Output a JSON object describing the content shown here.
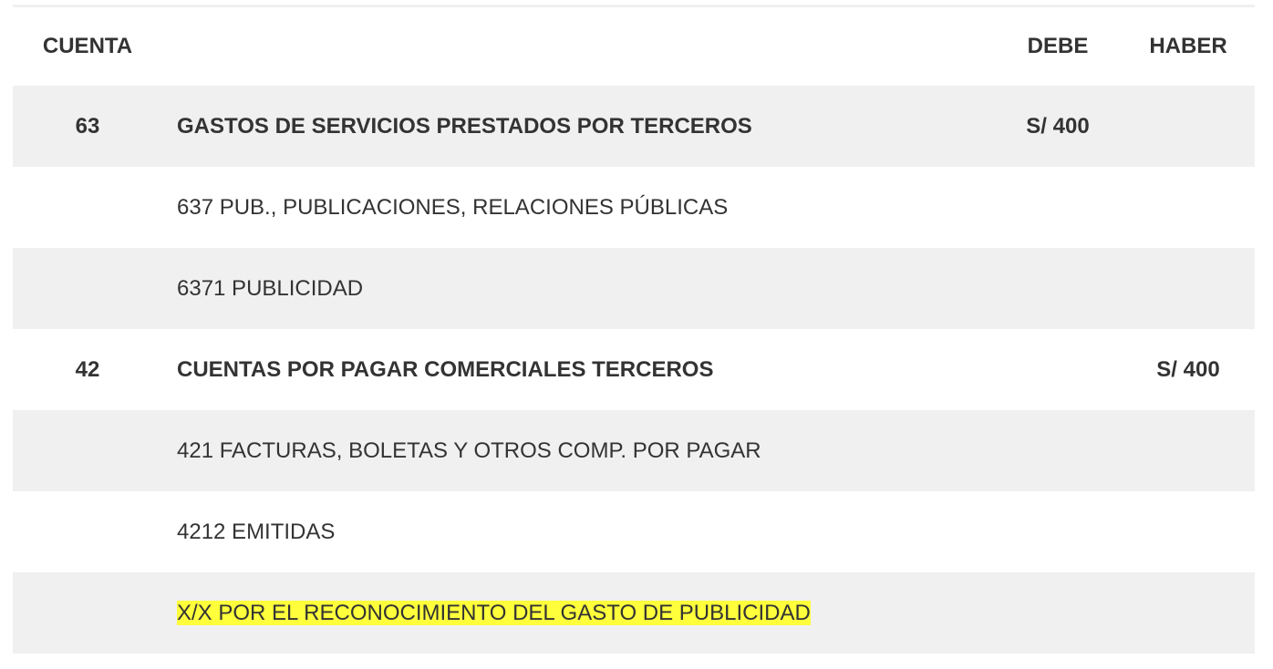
{
  "headers": {
    "cuenta": "CUENTA",
    "desc": "",
    "debe": "DEBE",
    "haber": "HABER"
  },
  "rows": [
    {
      "cuenta": "63",
      "desc": "GASTOS DE SERVICIOS PRESTADOS POR TERCEROS",
      "debe": "S/ 400",
      "haber": "",
      "bold": true
    },
    {
      "cuenta": "",
      "desc": "637 PUB., PUBLICACIONES, RELACIONES PÚBLICAS",
      "debe": "",
      "haber": ""
    },
    {
      "cuenta": "",
      "desc": "6371 PUBLICIDAD",
      "debe": "",
      "haber": ""
    },
    {
      "cuenta": "42",
      "desc": "CUENTAS POR PAGAR COMERCIALES TERCEROS",
      "debe": "",
      "haber": "S/ 400",
      "bold": true
    },
    {
      "cuenta": "",
      "desc": "421 FACTURAS, BOLETAS Y OTROS COMP. POR PAGAR",
      "debe": "",
      "haber": ""
    },
    {
      "cuenta": "",
      "desc": "4212 EMITIDAS",
      "debe": "",
      "haber": ""
    },
    {
      "cuenta": "",
      "desc": "X/X POR EL RECONOCIMIENTO DEL GASTO DE PUBLICIDAD",
      "debe": "",
      "haber": "",
      "highlight": true
    }
  ],
  "colors": {
    "stripe": "#f0f0f0",
    "highlight": "#ffff3c",
    "text": "#333333"
  }
}
